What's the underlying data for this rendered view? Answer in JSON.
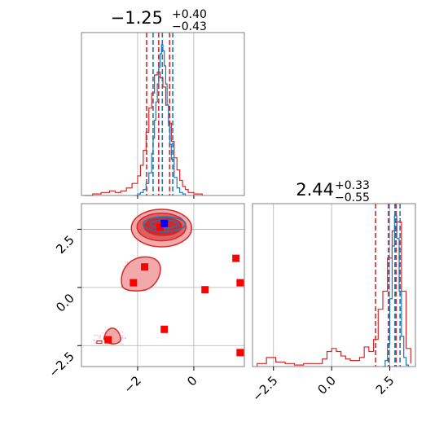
{
  "colors": {
    "red": "#d62728",
    "blue": "#1f77b4",
    "marker_red": "#ff0000",
    "marker_blue": "#0000ff",
    "grid": "#b0b0b0",
    "frame": "#808080"
  },
  "chart_data": {
    "type": "corner",
    "parameter_titles": [
      {
        "value": "−1.25",
        "plus": "+0.40",
        "minus": "−0.43"
      },
      {
        "value": "2.44",
        "plus": "+0.33",
        "minus": "−0.55"
      }
    ],
    "x_ticks": {
      "param0": {
        "values": [
          -2,
          0
        ],
        "labels": [
          "−2",
          "0"
        ]
      },
      "param1": {
        "values": [
          -2.5,
          0,
          2.5
        ],
        "labels": [
          "−2.5",
          "0.0",
          "2.5"
        ]
      }
    },
    "y_ticks": {
      "param1": {
        "values": [
          -2.5,
          0,
          2.5
        ],
        "labels": [
          "−2.5",
          "0.0",
          "2.5"
        ]
      }
    },
    "ranges": {
      "param0": [
        -4.0,
        1.8
      ],
      "param1": [
        -3.4,
        3.6
      ]
    },
    "grid": true,
    "series": [
      {
        "color": "red",
        "quantile_lines_param0": [
          -1.68,
          -0.86
        ],
        "median_param0": -1.25,
        "quantile_lines_param1": [
          1.89,
          2.77
        ],
        "median_param1": 2.44,
        "histogram_param0": {
          "x": [
            -3.9,
            -3.6,
            -3.3,
            -3.0,
            -2.8,
            -2.6,
            -2.4,
            -2.2,
            -2.0,
            -1.9,
            -1.8,
            -1.7,
            -1.6,
            -1.5,
            -1.4,
            -1.3,
            -1.2,
            -1.1,
            -1.0,
            -0.9,
            -0.8,
            -0.7,
            -0.6,
            -0.5,
            -0.4,
            -0.3,
            -0.2,
            0.0,
            0.3
          ],
          "y": [
            0.0,
            0.01,
            0.02,
            0.03,
            0.02,
            0.03,
            0.05,
            0.08,
            0.13,
            0.2,
            0.3,
            0.42,
            0.58,
            0.68,
            0.8,
            0.82,
            0.78,
            0.72,
            0.6,
            0.48,
            0.36,
            0.25,
            0.17,
            0.1,
            0.06,
            0.04,
            0.02,
            0.01,
            0.0
          ]
        },
        "histogram_param1": {
          "x": [
            -3.2,
            -2.8,
            -2.4,
            -2.0,
            -1.6,
            -1.2,
            -0.8,
            -0.4,
            -0.2,
            0.0,
            0.2,
            0.4,
            0.6,
            0.8,
            1.0,
            1.2,
            1.4,
            1.6,
            1.8,
            2.0,
            2.2,
            2.4,
            2.6,
            2.8,
            3.0,
            3.2,
            3.4
          ],
          "y": [
            0.02,
            0.06,
            0.03,
            0.02,
            0.01,
            0.02,
            0.02,
            0.05,
            0.1,
            0.12,
            0.1,
            0.07,
            0.05,
            0.04,
            0.04,
            0.06,
            0.13,
            0.1,
            0.18,
            0.38,
            0.5,
            0.72,
            0.9,
            0.96,
            0.5,
            0.12,
            0.02
          ]
        },
        "markers": [
          {
            "x": -3.05,
            "y": -2.25
          },
          {
            "x": -2.15,
            "y": 0.2
          },
          {
            "x": -1.75,
            "y": 0.88
          },
          {
            "x": -1.05,
            "y": -1.8
          },
          {
            "x": -1.2,
            "y": 2.58
          },
          {
            "x": 0.4,
            "y": -0.1
          },
          {
            "x": 1.5,
            "y": 1.25
          },
          {
            "x": 1.65,
            "y": 0.2
          },
          {
            "x": 1.65,
            "y": -2.8
          }
        ]
      },
      {
        "color": "blue",
        "quantile_lines_param0": [
          -1.45,
          -0.75
        ],
        "median_param0": -1.12,
        "quantile_lines_param1": [
          2.46,
          2.94
        ],
        "median_param1": 2.72,
        "histogram_param0": {
          "x": [
            -2.1,
            -2.0,
            -1.9,
            -1.8,
            -1.7,
            -1.6,
            -1.5,
            -1.45,
            -1.4,
            -1.35,
            -1.3,
            -1.25,
            -1.2,
            -1.15,
            -1.1,
            -1.05,
            -1.0,
            -0.95,
            -0.9,
            -0.85,
            -0.8,
            -0.7,
            -0.6,
            -0.5,
            -0.4,
            -0.3
          ],
          "y": [
            0.0,
            0.01,
            0.02,
            0.04,
            0.08,
            0.15,
            0.28,
            0.38,
            0.5,
            0.62,
            0.74,
            0.85,
            0.94,
            1.0,
            0.96,
            0.86,
            0.74,
            0.6,
            0.46,
            0.34,
            0.24,
            0.12,
            0.05,
            0.02,
            0.01,
            0.0
          ]
        },
        "histogram_param1": {
          "x": [
            2.2,
            2.3,
            2.4,
            2.5,
            2.6,
            2.7,
            2.8,
            2.9,
            3.0,
            3.1,
            3.2,
            3.3
          ],
          "y": [
            0.0,
            0.04,
            0.15,
            0.45,
            0.8,
            1.0,
            0.85,
            0.5,
            0.2,
            0.06,
            0.01,
            0.0
          ]
        },
        "markers": [
          {
            "x": -1.05,
            "y": 2.75
          }
        ]
      }
    ]
  }
}
